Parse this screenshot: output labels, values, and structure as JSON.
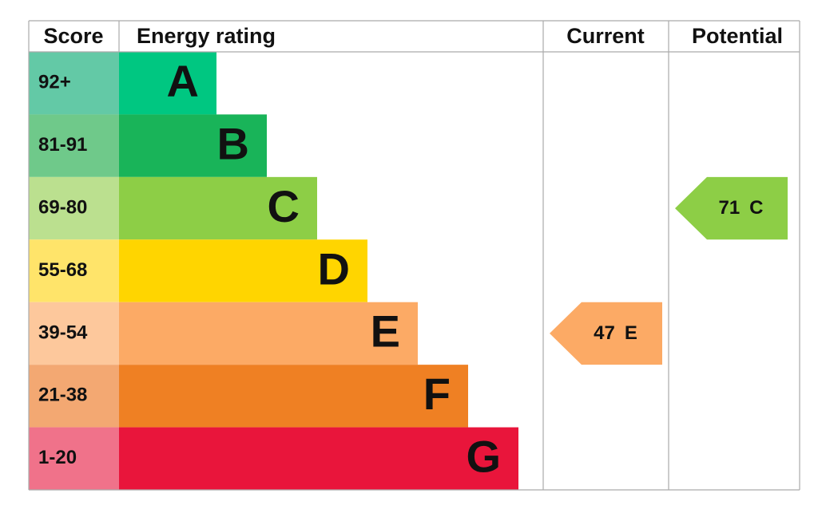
{
  "header": {
    "score": "Score",
    "rating": "Energy rating",
    "current": "Current",
    "potential": "Potential"
  },
  "bands": [
    {
      "score": "92+",
      "letter": "A",
      "color": "#00c781",
      "score_color": "#63c9a6"
    },
    {
      "score": "81-91",
      "letter": "B",
      "color": "#19b459",
      "score_color": "#6fc98a"
    },
    {
      "score": "69-80",
      "letter": "C",
      "color": "#8dce46",
      "score_color": "#bbe08f"
    },
    {
      "score": "55-68",
      "letter": "D",
      "color": "#ffd500",
      "score_color": "#ffe46a"
    },
    {
      "score": "39-54",
      "letter": "E",
      "color": "#fcaa65",
      "score_color": "#fdc89c"
    },
    {
      "score": "21-38",
      "letter": "F",
      "color": "#ef8023",
      "score_color": "#f3a872"
    },
    {
      "score": "1-20",
      "letter": "G",
      "color": "#e9153b",
      "score_color": "#f0728a"
    }
  ],
  "current": {
    "value": 47,
    "letter": "E"
  },
  "potential": {
    "value": 71,
    "letter": "C"
  }
}
